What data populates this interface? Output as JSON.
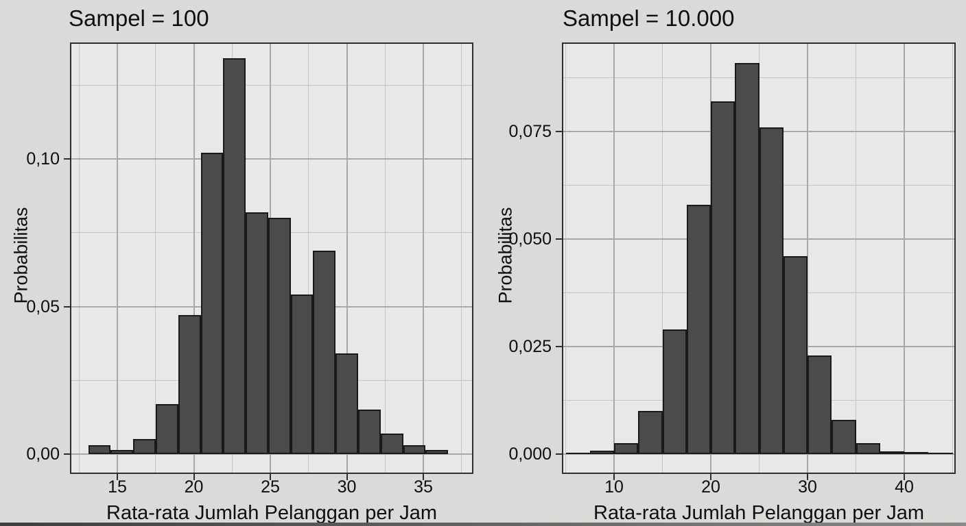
{
  "figure": {
    "background": "#dbdad8",
    "panel_background": "#e9e8e6",
    "bar_fill": "#4c4b49",
    "bar_stroke": "#1a1a1a",
    "grid_major": "#a9a8a6",
    "grid_minor": "#c6c5c3",
    "panel_border": "#2e2e2e",
    "text_color": "#0e0e0e"
  },
  "chart_data": [
    {
      "type": "bar",
      "subtype": "histogram",
      "title": "Sampel = 100",
      "xlabel": "Rata-rata Jumlah Pelanggan per Jam",
      "ylabel": "Probabilitas",
      "bin_start": 13.1,
      "bin_width": 1.47,
      "values": [
        0.003,
        0.0015,
        0.005,
        0.017,
        0.047,
        0.102,
        0.134,
        0.082,
        0.08,
        0.054,
        0.069,
        0.034,
        0.015,
        0.007,
        0.003,
        0.0015
      ],
      "x_ticks": [
        {
          "v": 15,
          "label": "15"
        },
        {
          "v": 20,
          "label": "20"
        },
        {
          "v": 25,
          "label": "25"
        },
        {
          "v": 30,
          "label": "30"
        },
        {
          "v": 35,
          "label": "35"
        }
      ],
      "y_ticks": [
        {
          "v": 0,
          "label": "0,00"
        },
        {
          "v": 0.05,
          "label": "0,05"
        },
        {
          "v": 0.1,
          "label": "0,10"
        }
      ],
      "x_minor": [
        12.5,
        17.5,
        22.5,
        27.5,
        32.5,
        37.5
      ],
      "y_minor": [
        0.025,
        0.075,
        0.125
      ],
      "xlim": [
        11.9,
        38.3
      ],
      "ylim": [
        -0.0067,
        0.139
      ],
      "grid": true,
      "legend": false
    },
    {
      "type": "bar",
      "subtype": "histogram",
      "title": "Sampel = 10.000",
      "xlabel": "Rata-rata Jumlah Pelanggan per Jam",
      "ylabel": "Probabilitas",
      "bin_start": 5.0,
      "bin_width": 2.5,
      "values": [
        0.0003,
        0.0008,
        0.0025,
        0.01,
        0.029,
        0.058,
        0.082,
        0.091,
        0.076,
        0.046,
        0.023,
        0.008,
        0.0025,
        0.0007,
        0.0004,
        0.0002
      ],
      "x_ticks": [
        {
          "v": 10,
          "label": "10"
        },
        {
          "v": 20,
          "label": "20"
        },
        {
          "v": 30,
          "label": "30"
        },
        {
          "v": 40,
          "label": "40"
        }
      ],
      "y_ticks": [
        {
          "v": 0,
          "label": "0,000"
        },
        {
          "v": 0.025,
          "label": "0,025"
        },
        {
          "v": 0.05,
          "label": "0,050"
        },
        {
          "v": 0.075,
          "label": "0,075"
        }
      ],
      "x_minor": [
        5,
        15,
        25,
        35,
        45
      ],
      "y_minor": [
        0.0125,
        0.0375,
        0.0625,
        0.0875
      ],
      "xlim": [
        4.7,
        45.3
      ],
      "ylim": [
        -0.0046,
        0.0957
      ],
      "grid": true,
      "legend": false
    }
  ]
}
